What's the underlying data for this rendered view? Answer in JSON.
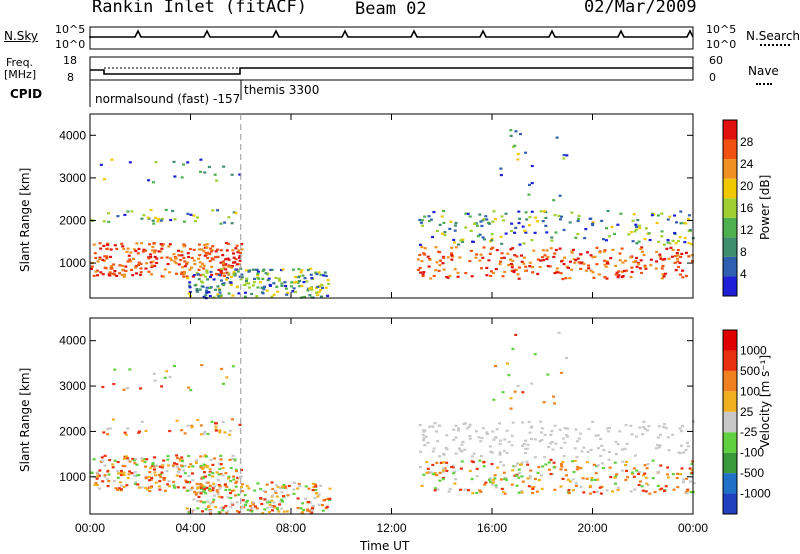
{
  "header": {
    "title": "Rankin Inlet (fitACF)",
    "beam": "Beam 02",
    "date": "02/Mar/2009"
  },
  "strip_labels": {
    "nsky": "N.Sky",
    "nsearch": "N.Search",
    "freq_line1": "Freq.",
    "freq_line2": "[MHz]",
    "nave": "Nave",
    "cpid": "CPID",
    "nsky_ticks": [
      "10^5",
      "10^0"
    ],
    "nsearch_ticks": [
      "10^5",
      "10^0"
    ],
    "freq_ticks": [
      "18",
      "8"
    ],
    "nave_ticks": [
      "60",
      "0"
    ]
  },
  "cpid_labels": {
    "first": "normalsound (fast) -157",
    "second": "themis 3300"
  },
  "chart_data": [
    {
      "type": "heatmap",
      "quantity": "Power",
      "xlabel": "",
      "ylabel": "Slant Range [km]",
      "colorbar_label": "Power [dB]",
      "colorbar_ticks": [
        "28",
        "24",
        "20",
        "16",
        "12",
        "8",
        "4"
      ],
      "y_ticks": [
        "4000",
        "3000",
        "2000",
        "1000"
      ],
      "xlim": [
        0,
        24
      ],
      "ylim": [
        180,
        4500
      ],
      "colors": [
        "#1f1fd8",
        "#2f5fb0",
        "#3f8f6f",
        "#4fb04f",
        "#9fd02f",
        "#f0c800",
        "#f09020",
        "#f05010",
        "#e01010"
      ]
    },
    {
      "type": "heatmap",
      "quantity": "Velocity",
      "xlabel": "Time UT",
      "ylabel": "Slant Range [km]",
      "colorbar_label": "Velocity [m s⁻¹]",
      "colorbar_ticks": [
        "1000",
        "500",
        "100",
        "25",
        "-25",
        "-100",
        "-500",
        "-1000"
      ],
      "y_ticks": [
        "4000",
        "3000",
        "2000",
        "1000"
      ],
      "x_ticks": [
        "00:00",
        "04:00",
        "08:00",
        "12:00",
        "16:00",
        "20:00",
        "00:00"
      ],
      "xlim": [
        0,
        24
      ],
      "ylim": [
        180,
        4500
      ],
      "colors": [
        "#2040c0",
        "#2070c8",
        "#3a9a3a",
        "#60d040",
        "#c8c8c8",
        "#f0b020",
        "#f08020",
        "#e83010",
        "#e00000"
      ]
    }
  ]
}
